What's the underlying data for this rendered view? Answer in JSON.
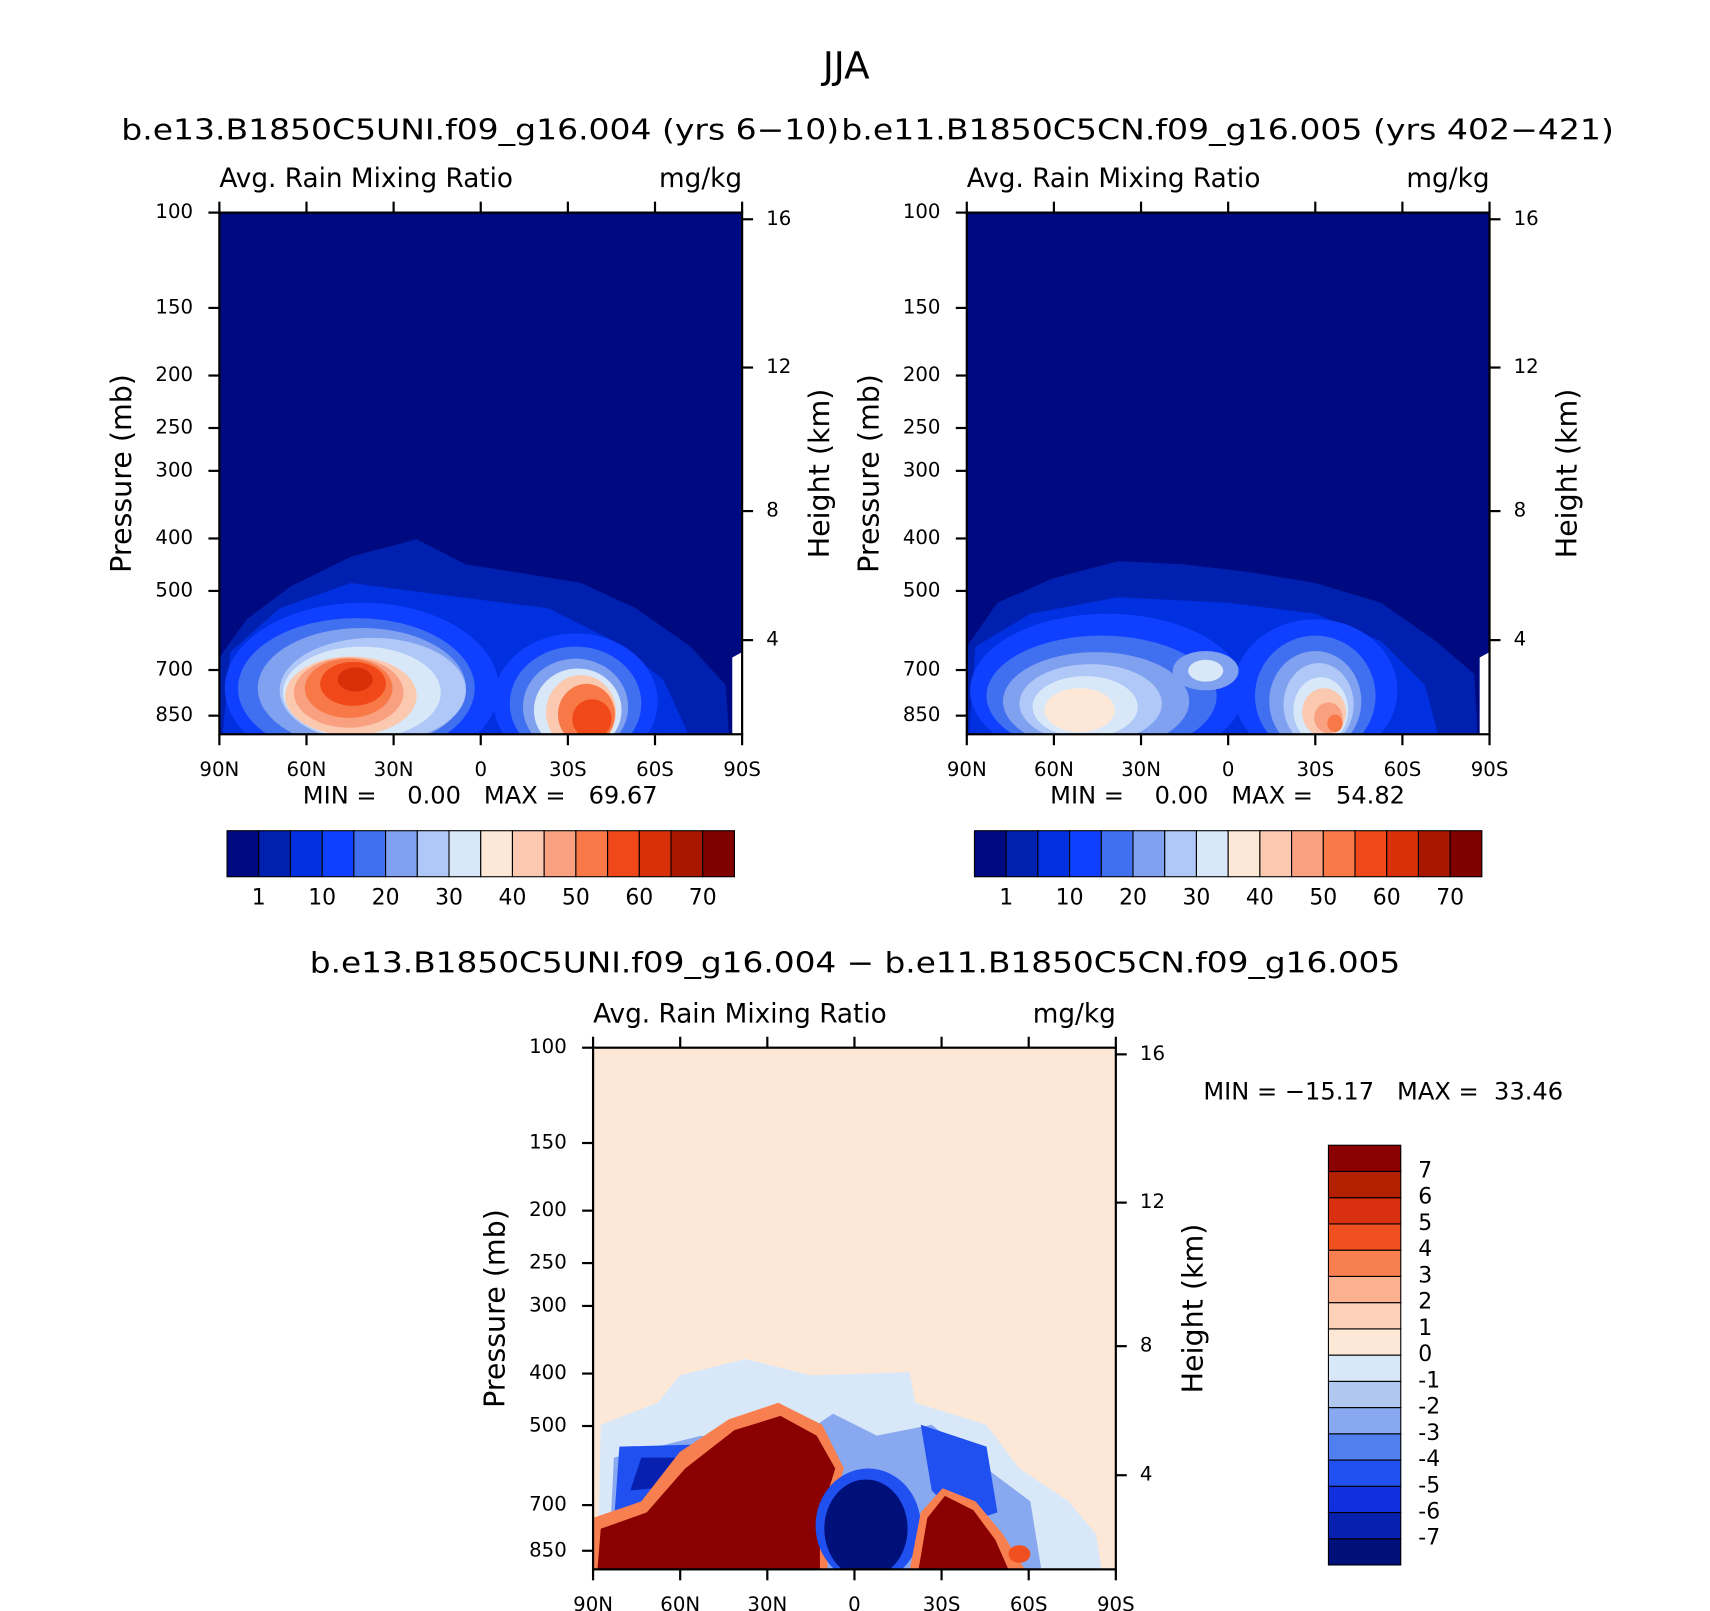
{
  "title": "JJA",
  "chart_data": [
    {
      "type": "contour",
      "title": "b.e13.B1850C5UNI.f09_g16.004 (yrs 6−10)",
      "subtitle": "Avg. Rain Mixing Ratio",
      "units": "mg/kg",
      "ylabel": "Pressure (mb)",
      "y2label": "Height (km)",
      "ylog": true,
      "xlim": [
        90,
        -90
      ],
      "xticks": [
        {
          "value": 90,
          "label": "90N"
        },
        {
          "value": 60,
          "label": "60N"
        },
        {
          "value": 30,
          "label": "30N"
        },
        {
          "value": 0,
          "label": "0"
        },
        {
          "value": -30,
          "label": "30S"
        },
        {
          "value": -60,
          "label": "60S"
        },
        {
          "value": -90,
          "label": "90S"
        }
      ],
      "ylim": [
        100,
        920
      ],
      "yticks": [
        100,
        150,
        200,
        250,
        300,
        400,
        500,
        700,
        850
      ],
      "y2ticks": [
        4,
        8,
        12,
        16
      ],
      "stats": "MIN =    0.00   MAX =   69.67",
      "colorbar": {
        "orientation": "horizontal",
        "levels": [
          1,
          10,
          20,
          30,
          40,
          50,
          60,
          70
        ],
        "colors": [
          "#000a80",
          "#0020b0",
          "#0030e0",
          "#1040ff",
          "#4070f0",
          "#80a0f0",
          "#b0c8f8",
          "#d8e8f8",
          "#fde8d8",
          "#fbc8b0",
          "#f8a080",
          "#f87848",
          "#f04818",
          "#d83008",
          "#a81800",
          "#800000"
        ]
      }
    },
    {
      "type": "contour",
      "title": "b.e11.B1850C5CN.f09_g16.005 (yrs 402−421)",
      "subtitle": "Avg. Rain Mixing Ratio",
      "units": "mg/kg",
      "ylabel": "Pressure (mb)",
      "y2label": "Height (km)",
      "ylog": true,
      "xlim": [
        90,
        -90
      ],
      "xticks": [
        {
          "value": 90,
          "label": "90N"
        },
        {
          "value": 60,
          "label": "60N"
        },
        {
          "value": 30,
          "label": "30N"
        },
        {
          "value": 0,
          "label": "0"
        },
        {
          "value": -30,
          "label": "30S"
        },
        {
          "value": -60,
          "label": "60S"
        },
        {
          "value": -90,
          "label": "90S"
        }
      ],
      "ylim": [
        100,
        920
      ],
      "yticks": [
        100,
        150,
        200,
        250,
        300,
        400,
        500,
        700,
        850
      ],
      "y2ticks": [
        4,
        8,
        12,
        16
      ],
      "stats": "MIN =    0.00   MAX =   54.82",
      "colorbar": {
        "orientation": "horizontal",
        "levels": [
          1,
          10,
          20,
          30,
          40,
          50,
          60,
          70
        ],
        "colors": [
          "#000a80",
          "#0020b0",
          "#0030e0",
          "#1040ff",
          "#4070f0",
          "#80a0f0",
          "#b0c8f8",
          "#d8e8f8",
          "#fde8d8",
          "#fbc8b0",
          "#f8a080",
          "#f87848",
          "#f04818",
          "#d83008",
          "#a81800",
          "#800000"
        ]
      }
    },
    {
      "type": "contour",
      "title": "b.e13.B1850C5UNI.f09_g16.004 − b.e11.B1850C5CN.f09_g16.005",
      "subtitle": "Avg. Rain Mixing Ratio",
      "units": "mg/kg",
      "ylabel": "Pressure (mb)",
      "y2label": "Height (km)",
      "ylog": true,
      "xlim": [
        90,
        -90
      ],
      "xticks": [
        {
          "value": 90,
          "label": "90N"
        },
        {
          "value": 60,
          "label": "60N"
        },
        {
          "value": 30,
          "label": "30N"
        },
        {
          "value": 0,
          "label": "0"
        },
        {
          "value": -30,
          "label": "30S"
        },
        {
          "value": -60,
          "label": "60S"
        },
        {
          "value": -90,
          "label": "90S"
        }
      ],
      "ylim": [
        100,
        920
      ],
      "yticks": [
        100,
        150,
        200,
        250,
        300,
        400,
        500,
        700,
        850
      ],
      "y2ticks": [
        4,
        8,
        12,
        16
      ],
      "stats": "MIN = −15.17   MAX =  33.46",
      "colorbar": {
        "orientation": "vertical",
        "levels": [
          -7,
          -6,
          -5,
          -4,
          -3,
          -2,
          -1,
          0,
          1,
          2,
          3,
          4,
          5,
          6,
          7
        ],
        "colors": [
          "#00107a",
          "#0820b0",
          "#1030e0",
          "#2050f0",
          "#5080f0",
          "#88a8f0",
          "#b0c8f0",
          "#d8e8f8",
          "#fde8d8",
          "#fdd0b8",
          "#fbb090",
          "#f88050",
          "#f05020",
          "#d83010",
          "#b22000",
          "#8b0000"
        ]
      }
    }
  ]
}
